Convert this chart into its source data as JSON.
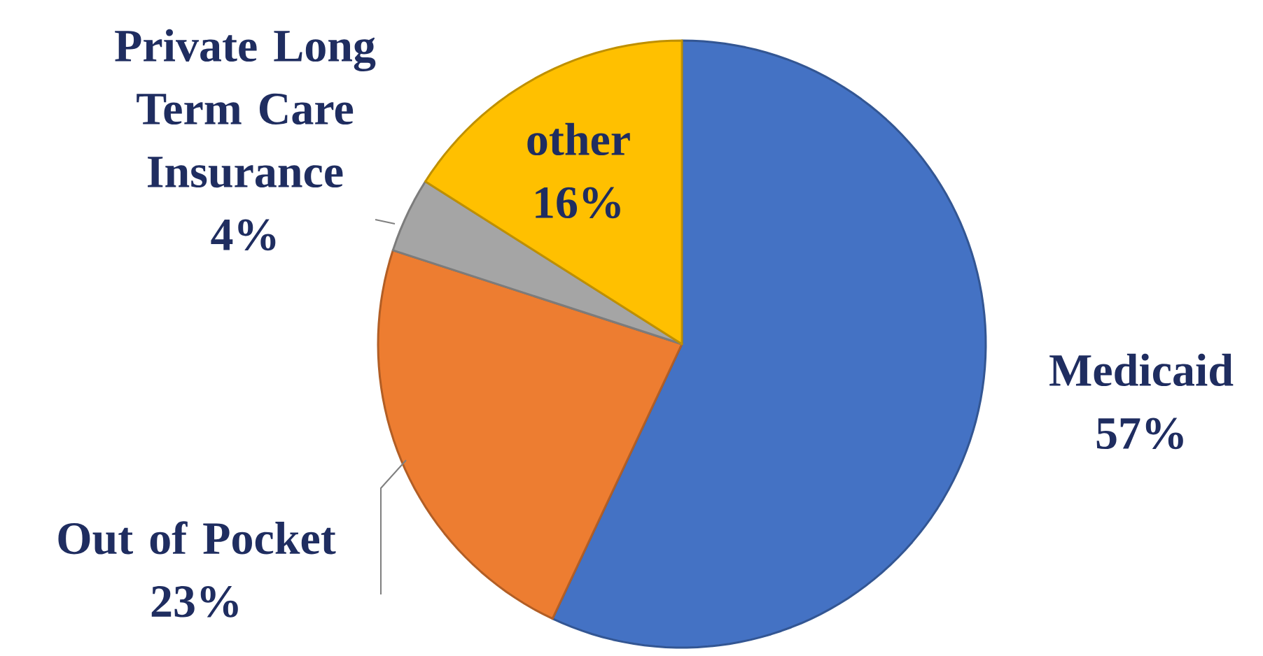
{
  "chart_data": {
    "type": "pie",
    "categories": [
      "Medicaid",
      "Out of Pocket",
      "Private Long Term Care Insurance",
      "other"
    ],
    "values": [
      57,
      23,
      4,
      16
    ],
    "colors": [
      "#4472c4",
      "#ed7d31",
      "#a5a5a5",
      "#ffc000"
    ],
    "value_labels": [
      "57%",
      "23%",
      "4%",
      "16%"
    ]
  }
}
